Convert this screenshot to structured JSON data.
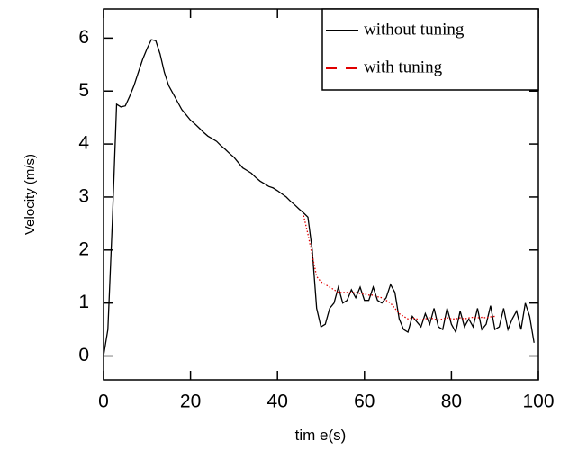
{
  "chart_data": {
    "type": "line",
    "x_label": "tim e(s)",
    "y_label": "Velocity (m/s)",
    "x": [
      0,
      1,
      2,
      3,
      4,
      5,
      6,
      7,
      8,
      9,
      10,
      11,
      12,
      13,
      14,
      15,
      16,
      17,
      18,
      19,
      20,
      21,
      22,
      23,
      24,
      25,
      26,
      27,
      28,
      29,
      30,
      31,
      32,
      33,
      34,
      35,
      36,
      37,
      38,
      39,
      40,
      41,
      42,
      43,
      44,
      45,
      46,
      47,
      48,
      49,
      50,
      51,
      52,
      53,
      54,
      55,
      56,
      57,
      58,
      59,
      60,
      61,
      62,
      63,
      64,
      65,
      66,
      67,
      68,
      69,
      70,
      71,
      72,
      73,
      74,
      75,
      76,
      77,
      78,
      79,
      80,
      81,
      82,
      83,
      84,
      85,
      86,
      87,
      88,
      89,
      90,
      91,
      92,
      93,
      94,
      95,
      96,
      97,
      98,
      99
    ],
    "series": [
      {
        "name": "without tuning",
        "color": "#000000",
        "style": "solid",
        "values": [
          0,
          0.5,
          2.5,
          4.75,
          4.7,
          4.72,
          4.9,
          5.1,
          5.35,
          5.6,
          5.8,
          5.97,
          5.95,
          5.7,
          5.35,
          5.1,
          4.95,
          4.8,
          4.65,
          4.55,
          4.45,
          4.38,
          4.3,
          4.22,
          4.15,
          4.1,
          4.05,
          3.97,
          3.9,
          3.82,
          3.75,
          3.65,
          3.55,
          3.5,
          3.45,
          3.37,
          3.3,
          3.25,
          3.2,
          3.17,
          3.12,
          3.06,
          3.0,
          2.92,
          2.85,
          2.77,
          2.7,
          2.62,
          2.0,
          0.9,
          0.55,
          0.6,
          0.9,
          1.0,
          1.3,
          1.0,
          1.05,
          1.25,
          1.1,
          1.3,
          1.05,
          1.05,
          1.3,
          1.05,
          1.0,
          1.1,
          1.35,
          1.2,
          0.7,
          0.5,
          0.45,
          0.75,
          0.65,
          0.55,
          0.8,
          0.6,
          0.9,
          0.55,
          0.5,
          0.9,
          0.6,
          0.45,
          0.85,
          0.55,
          0.7,
          0.55,
          0.9,
          0.5,
          0.6,
          0.95,
          0.5,
          0.55,
          0.9,
          0.5,
          0.7,
          0.85,
          0.5,
          1.0,
          0.75,
          0.25
        ]
      },
      {
        "name": "with tuning",
        "color": "#e00000",
        "style": "dotted",
        "values": [
          null,
          null,
          null,
          null,
          null,
          null,
          null,
          null,
          null,
          null,
          null,
          null,
          null,
          null,
          null,
          null,
          null,
          null,
          null,
          null,
          null,
          null,
          null,
          null,
          null,
          null,
          null,
          null,
          null,
          null,
          null,
          null,
          null,
          null,
          null,
          null,
          null,
          null,
          null,
          null,
          null,
          null,
          null,
          null,
          null,
          null,
          2.65,
          2.3,
          1.9,
          1.5,
          1.4,
          1.35,
          1.3,
          1.25,
          1.2,
          1.2,
          1.2,
          1.2,
          1.2,
          1.18,
          1.17,
          1.15,
          1.15,
          1.12,
          1.1,
          1.05,
          1.0,
          0.9,
          0.8,
          0.75,
          0.7,
          0.72,
          0.7,
          0.68,
          0.7,
          0.72,
          0.7,
          0.68,
          0.7,
          0.72,
          0.7,
          0.7,
          0.72,
          0.7,
          0.72,
          0.73,
          0.72,
          0.73,
          0.72,
          0.74,
          0.75,
          null,
          null,
          null,
          null,
          null,
          null,
          null,
          null,
          null
        ]
      }
    ],
    "xlim": [
      0,
      100
    ],
    "xticks": [
      0,
      20,
      40,
      60,
      80,
      100
    ],
    "ylim": [
      -0.45,
      6.55
    ],
    "yticks": [
      0,
      1,
      2,
      3,
      4,
      5,
      6
    ],
    "legend": "upper right"
  }
}
